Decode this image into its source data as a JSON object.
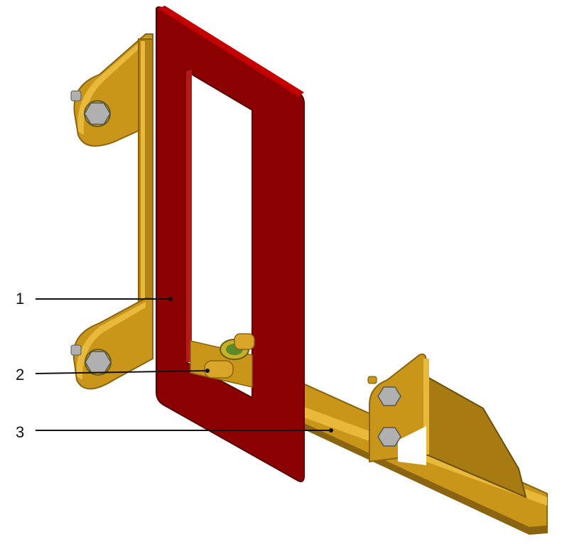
{
  "callouts": [
    {
      "label": "1"
    },
    {
      "label": "2"
    },
    {
      "label": "3"
    }
  ],
  "colors": {
    "frame_red": "#8b0000",
    "frame_red_edge": "#c40000",
    "bracket_gold": "#c9961a",
    "bracket_gold_dark": "#8a6410",
    "bracket_gold_light": "#e8b93a",
    "bolt_gray": "#b0b0b0",
    "washer_green": "#5a8a2a",
    "leader_line": "#111111"
  }
}
